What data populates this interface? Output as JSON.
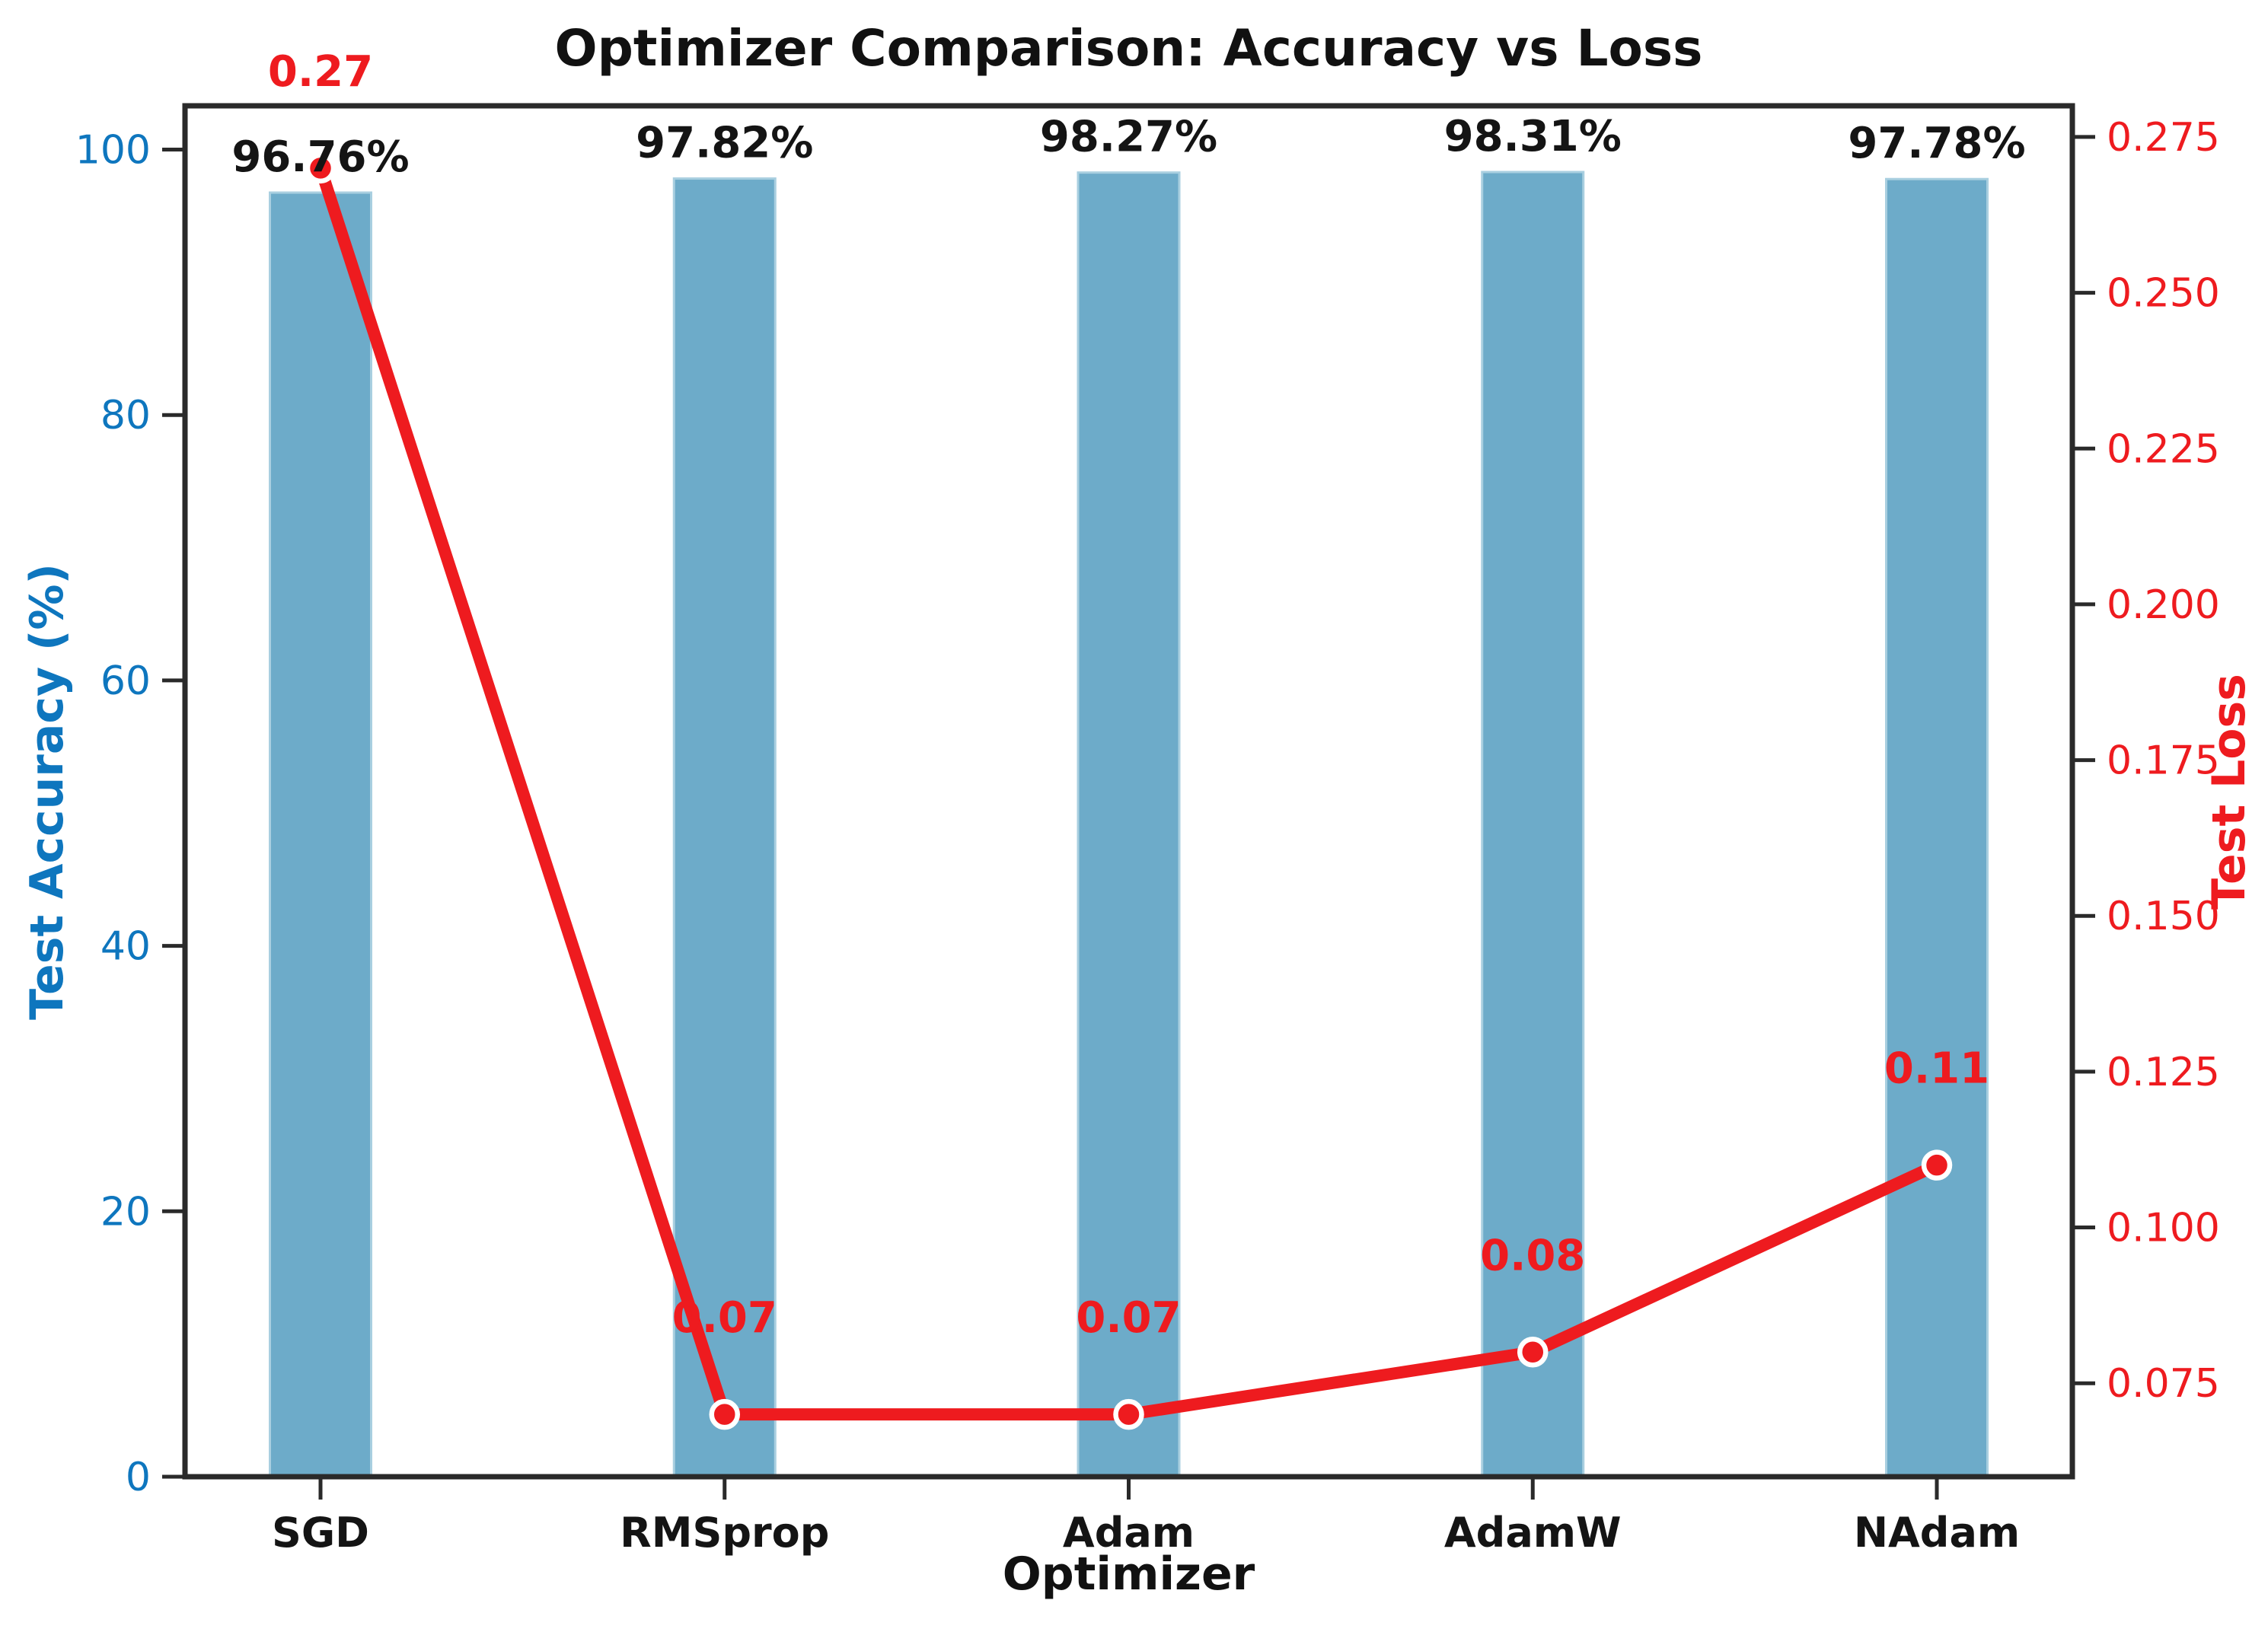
{
  "figure": {
    "background": "#ffffff"
  },
  "chart_data": {
    "type": "bar",
    "title": "Optimizer Comparison: Accuracy vs Loss",
    "xlabel": "Optimizer",
    "categories": [
      "SGD",
      "RMSprop",
      "Adam",
      "AdamW",
      "NAdam"
    ],
    "series": [
      {
        "name": "Test Accuracy (%)",
        "type": "bar",
        "axis": "left",
        "values": [
          96.76,
          97.82,
          98.27,
          98.31,
          97.78
        ],
        "data_labels": [
          "96.76%",
          "97.82%",
          "98.27%",
          "98.31%",
          "97.78%"
        ],
        "color": "#6dabc9",
        "edge_color": "#a9cfe0"
      },
      {
        "name": "Test Loss",
        "type": "line",
        "axis": "right",
        "values": [
          0.27,
          0.07,
          0.07,
          0.08,
          0.11
        ],
        "data_labels": [
          "0.27",
          "0.07",
          "0.07",
          "0.08",
          "0.11"
        ],
        "color": "#ee1b1f",
        "marker": "circle",
        "marker_edge_color": "#ffffff"
      }
    ],
    "left_axis": {
      "label": "Test Accuracy (%)",
      "color": "#0e76be",
      "ticks": [
        0,
        20,
        40,
        60,
        80,
        100
      ],
      "lim": [
        0,
        103.3
      ]
    },
    "right_axis": {
      "label": "Test Loss",
      "color": "#ee1b1f",
      "tick_labels": [
        "0.075",
        "0.100",
        "0.125",
        "0.150",
        "0.175",
        "0.200",
        "0.225",
        "0.250",
        "0.275"
      ],
      "lim": [
        0.06,
        0.28
      ]
    },
    "grid": false,
    "legend": "none"
  }
}
